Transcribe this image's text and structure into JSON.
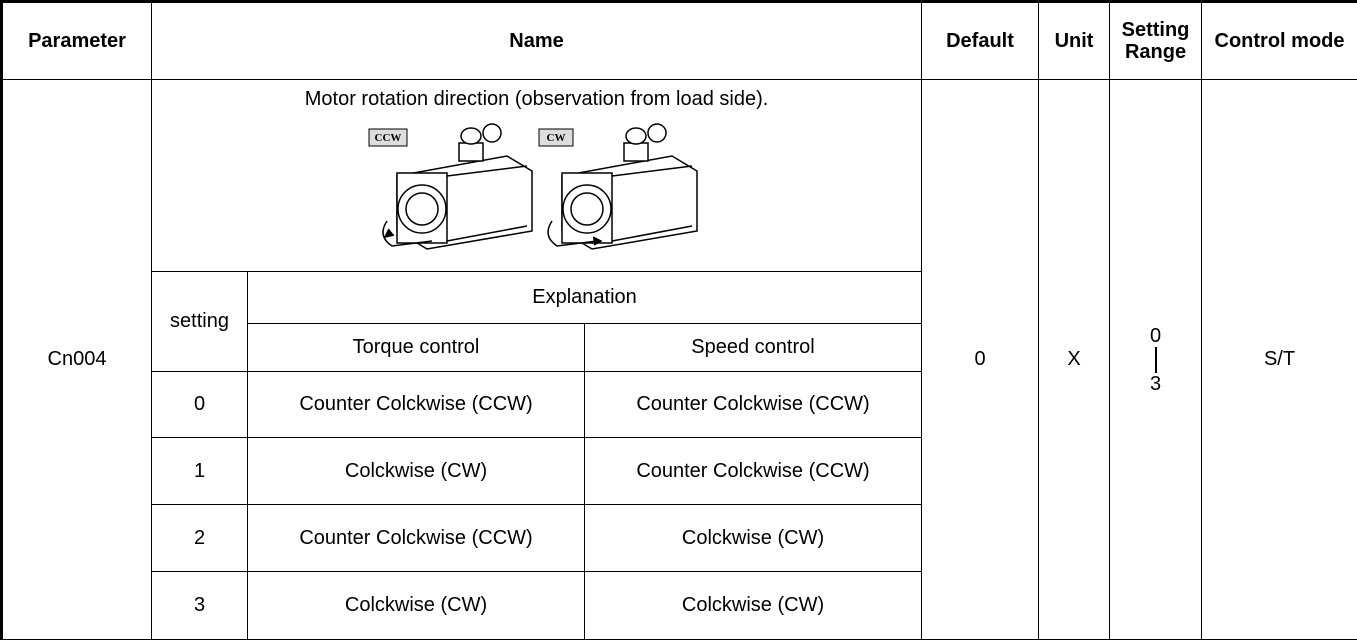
{
  "header": {
    "columns": [
      "Parameter",
      "Name",
      "Default",
      "Unit",
      "Setting Range",
      "Control mode"
    ]
  },
  "row": {
    "parameter": "Cn004",
    "description": "Motor rotation direction (observation from load side).",
    "figure": {
      "labels": [
        "CCW",
        "CW"
      ]
    },
    "subtable": {
      "setting_header": "setting",
      "explanation_header": "Explanation",
      "columns": [
        "Torque control",
        "Speed control"
      ],
      "rows": [
        [
          "0",
          "Counter Colckwise (CCW)",
          "Counter Colckwise (CCW)"
        ],
        [
          "1",
          "Colckwise (CW)",
          "Counter Colckwise (CCW)"
        ],
        [
          "2",
          "Counter Colckwise (CCW)",
          "Colckwise (CW)"
        ],
        [
          "3",
          "Colckwise (CW)",
          "Colckwise (CW)"
        ]
      ]
    },
    "default": "0",
    "unit": "X",
    "setting_range": {
      "min": "0",
      "max": "3"
    },
    "control_mode": "S/T"
  }
}
